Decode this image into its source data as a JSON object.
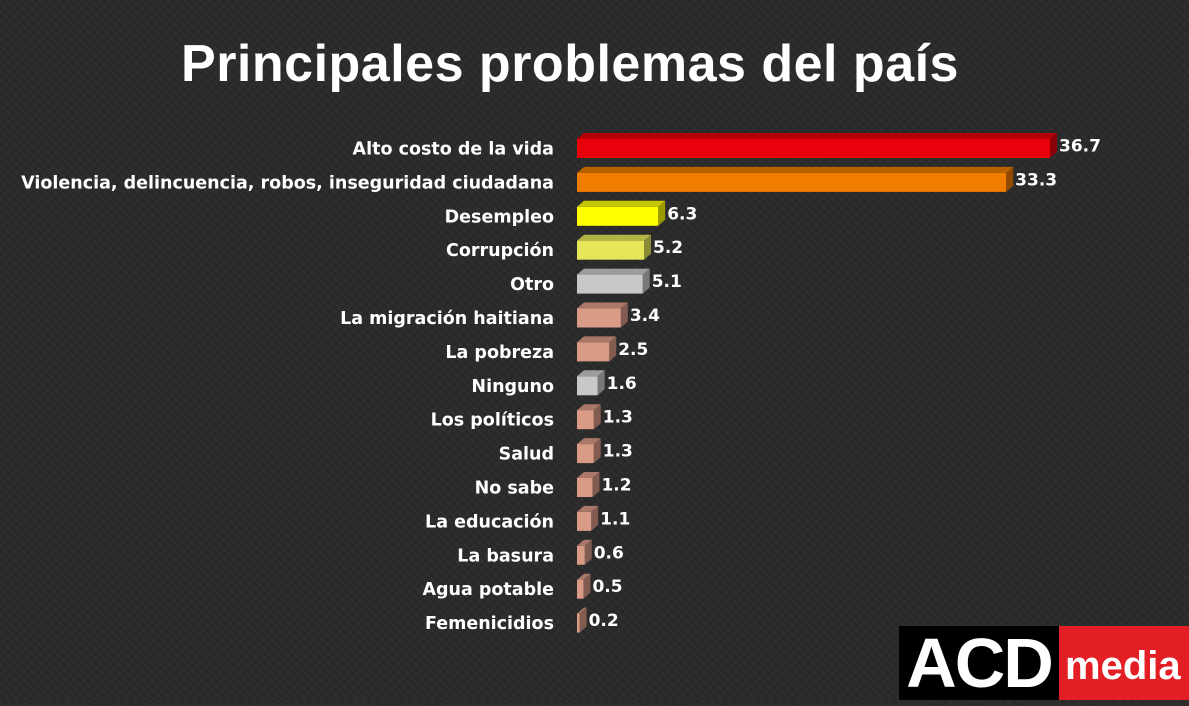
{
  "chart_data": {
    "type": "bar",
    "orientation": "horizontal",
    "title": "Principales problemas del país",
    "categories": [
      "Alto costo de la vida",
      "Violencia, delincuencia, robos, inseguridad ciudadana",
      "Desempleo",
      "Corrupción",
      "Otro",
      "La migración haitiana",
      "La pobreza",
      "Ninguno",
      "Los políticos",
      "Salud",
      "No sabe",
      "La educación",
      "La basura",
      "Agua potable",
      "Femenicidios"
    ],
    "values": [
      36.7,
      33.3,
      6.3,
      5.2,
      5.1,
      3.4,
      2.5,
      1.6,
      1.3,
      1.3,
      1.2,
      1.1,
      0.6,
      0.5,
      0.2
    ],
    "value_labels": [
      "36.7",
      "33.3",
      "6.3",
      "5.2",
      "5.1",
      "3.4",
      "2.5",
      "1.6",
      "1.3",
      "1.3",
      "1.2",
      "1.1",
      "0.6",
      "0.5",
      "0.2"
    ],
    "bar_colors": [
      "#e8000a",
      "#f07d00",
      "#ffff00",
      "#e6e65a",
      "#c8c8c8",
      "#d99a86",
      "#d99a86",
      "#c8c8c8",
      "#d99a86",
      "#d99a86",
      "#d99a86",
      "#d99a86",
      "#d99a86",
      "#d99a86",
      "#d99a86"
    ],
    "xlim": [
      0,
      36.7
    ],
    "grid": false,
    "legend": "none"
  },
  "logo": {
    "left_text": "ACD",
    "right_text": "media"
  },
  "colors": {
    "background": "#2b2b2b",
    "text": "#ffffff",
    "logo_red": "#e31e24"
  }
}
